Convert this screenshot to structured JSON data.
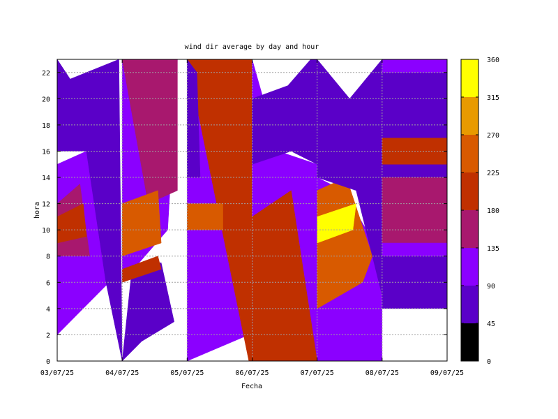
{
  "chart_data": {
    "type": "heatmap",
    "title": "wind dir average by day and hour",
    "xlabel": "Fecha",
    "ylabel": "hora",
    "x_ticks": [
      "03/07/25",
      "04/07/25",
      "05/07/25",
      "06/07/25",
      "07/07/25",
      "08/07/25",
      "09/07/25"
    ],
    "y_ticks": [
      0,
      2,
      4,
      6,
      8,
      10,
      12,
      14,
      16,
      18,
      20,
      22
    ],
    "ylim": [
      0,
      23
    ],
    "grid": true,
    "colorbar": {
      "ticks": [
        0,
        45,
        90,
        135,
        180,
        225,
        270,
        315,
        360
      ],
      "levels": [
        {
          "from": 0,
          "to": 45,
          "color": "#000000"
        },
        {
          "from": 45,
          "to": 90,
          "color": "#5a00c8"
        },
        {
          "from": 90,
          "to": 135,
          "color": "#8b00ff"
        },
        {
          "from": 135,
          "to": 180,
          "color": "#a8186e"
        },
        {
          "from": 180,
          "to": 225,
          "color": "#c03000"
        },
        {
          "from": 225,
          "to": 270,
          "color": "#d85a00"
        },
        {
          "from": 270,
          "to": 315,
          "color": "#e89a00"
        },
        {
          "from": 315,
          "to": 360,
          "color": "#ffff00"
        }
      ]
    },
    "regions": [
      {
        "level": 135,
        "points": [
          [
            0,
            2
          ],
          [
            0,
            15
          ],
          [
            0.45,
            16
          ],
          [
            0.8,
            6
          ]
        ]
      },
      {
        "level": 180,
        "points": [
          [
            0,
            8
          ],
          [
            0,
            12
          ],
          [
            0.35,
            13.5
          ],
          [
            0.5,
            8
          ]
        ]
      },
      {
        "level": 225,
        "points": [
          [
            0,
            9
          ],
          [
            0,
            11
          ],
          [
            0.4,
            12
          ],
          [
            0.45,
            9.5
          ]
        ]
      },
      {
        "level": 90,
        "points": [
          [
            0,
            23
          ],
          [
            0.2,
            21.5
          ],
          [
            0.95,
            23
          ],
          [
            1,
            0
          ],
          [
            0.75,
            6
          ],
          [
            0.45,
            16
          ],
          [
            0,
            16
          ]
        ]
      },
      {
        "level": 135,
        "points": [
          [
            1,
            23
          ],
          [
            1,
            6
          ],
          [
            1.7,
            10
          ],
          [
            1.85,
            23
          ],
          [
            1.4,
            22
          ]
        ]
      },
      {
        "level": 180,
        "points": [
          [
            1,
            23
          ],
          [
            1.85,
            23
          ],
          [
            1.85,
            13
          ],
          [
            1.4,
            12
          ]
        ]
      },
      {
        "level": 90,
        "points": [
          [
            1,
            0
          ],
          [
            1.15,
            7
          ],
          [
            1.6,
            7.5
          ],
          [
            1.8,
            3
          ],
          [
            1.3,
            1.5
          ]
        ]
      },
      {
        "level": 270,
        "points": [
          [
            1,
            8
          ],
          [
            1,
            12
          ],
          [
            1.55,
            13
          ],
          [
            1.6,
            9
          ]
        ]
      },
      {
        "level": 225,
        "points": [
          [
            1,
            7
          ],
          [
            1.55,
            8
          ],
          [
            1.6,
            7
          ],
          [
            1,
            6
          ]
        ]
      },
      {
        "level": 135,
        "points": [
          [
            2,
            23
          ],
          [
            2,
            0
          ],
          [
            2.95,
            2
          ],
          [
            3,
            23
          ]
        ]
      },
      {
        "level": 225,
        "points": [
          [
            2,
            23
          ],
          [
            3,
            23
          ],
          [
            3,
            0
          ],
          [
            2.95,
            0
          ]
        ]
      },
      {
        "level": 270,
        "points": [
          [
            2,
            10
          ],
          [
            2,
            12
          ],
          [
            2.55,
            12
          ],
          [
            2.55,
            10
          ]
        ]
      },
      {
        "level": 90,
        "points": [
          [
            2,
            14
          ],
          [
            2,
            23
          ],
          [
            2.15,
            22
          ],
          [
            2.2,
            14
          ]
        ]
      },
      {
        "level": 135,
        "points": [
          [
            3,
            23
          ],
          [
            3,
            0
          ],
          [
            4,
            0
          ],
          [
            4,
            15
          ],
          [
            3.4,
            16
          ]
        ]
      },
      {
        "level": 225,
        "points": [
          [
            3,
            11
          ],
          [
            3,
            0
          ],
          [
            4,
            0
          ],
          [
            3.6,
            13
          ]
        ]
      },
      {
        "level": 90,
        "points": [
          [
            3,
            15
          ],
          [
            3,
            20
          ],
          [
            3.55,
            21
          ],
          [
            3.9,
            23
          ],
          [
            4,
            23
          ],
          [
            4,
            15
          ],
          [
            3.6,
            16
          ]
        ]
      },
      {
        "level": 135,
        "points": [
          [
            4,
            0
          ],
          [
            5,
            0
          ],
          [
            5,
            8
          ],
          [
            4.4,
            13
          ],
          [
            4,
            14
          ]
        ]
      },
      {
        "level": 270,
        "points": [
          [
            4,
            4
          ],
          [
            4,
            13
          ],
          [
            4.45,
            14
          ],
          [
            4.85,
            8
          ],
          [
            4.7,
            6
          ]
        ]
      },
      {
        "level": 360,
        "points": [
          [
            4,
            9
          ],
          [
            4,
            11
          ],
          [
            4.6,
            12
          ],
          [
            4.55,
            10
          ]
        ]
      },
      {
        "level": 90,
        "points": [
          [
            4,
            14
          ],
          [
            4,
            23
          ],
          [
            4.5,
            20
          ],
          [
            5,
            23
          ],
          [
            5,
            5
          ],
          [
            4.6,
            13
          ]
        ]
      },
      {
        "level": 90,
        "points": [
          [
            5,
            4
          ],
          [
            5,
            23
          ],
          [
            6,
            23
          ],
          [
            6,
            4
          ]
        ]
      },
      {
        "level": 135,
        "points": [
          [
            5,
            22
          ],
          [
            5,
            23
          ],
          [
            6,
            23
          ],
          [
            6,
            22
          ]
        ]
      },
      {
        "level": 180,
        "points": [
          [
            5,
            9
          ],
          [
            5,
            14
          ],
          [
            6,
            14
          ],
          [
            6,
            9
          ]
        ]
      },
      {
        "level": 225,
        "points": [
          [
            5,
            15
          ],
          [
            5,
            17
          ],
          [
            6,
            17
          ],
          [
            6,
            15
          ]
        ]
      },
      {
        "level": 135,
        "points": [
          [
            5,
            8
          ],
          [
            5,
            9
          ],
          [
            6,
            9
          ],
          [
            6,
            8
          ]
        ]
      }
    ]
  }
}
